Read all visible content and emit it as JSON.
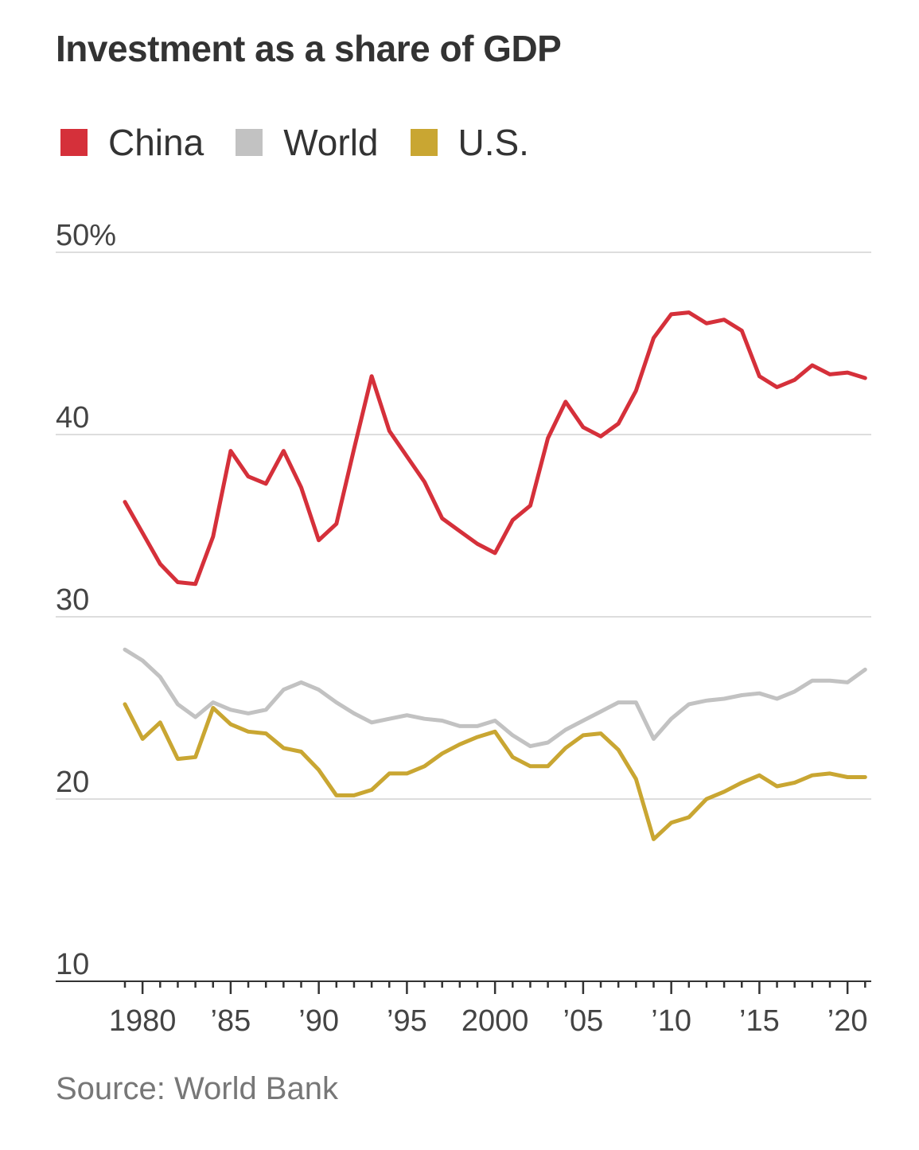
{
  "chart_data": {
    "type": "line",
    "title": "Investment as a share of GDP",
    "source": "Source: World Bank",
    "ylim": [
      10,
      50
    ],
    "yticks": [
      {
        "value": 50,
        "label": "50%"
      },
      {
        "value": 40,
        "label": "40"
      },
      {
        "value": 30,
        "label": "30"
      },
      {
        "value": 20,
        "label": "20"
      },
      {
        "value": 10,
        "label": "10"
      }
    ],
    "xlim": [
      1978,
      2022
    ],
    "xticks": [
      {
        "value": 1980,
        "label": "1980"
      },
      {
        "value": 1985,
        "label": "’85"
      },
      {
        "value": 1990,
        "label": "’90"
      },
      {
        "value": 1995,
        "label": "’95"
      },
      {
        "value": 2000,
        "label": "2000"
      },
      {
        "value": 2005,
        "label": "’05"
      },
      {
        "value": 2010,
        "label": "’10"
      },
      {
        "value": 2015,
        "label": "’15"
      },
      {
        "value": 2020,
        "label": "’20"
      }
    ],
    "grid": true,
    "legend_position": "top-left",
    "x": [
      1979,
      1980,
      1981,
      1982,
      1983,
      1984,
      1985,
      1986,
      1987,
      1988,
      1989,
      1990,
      1991,
      1992,
      1993,
      1994,
      1995,
      1996,
      1997,
      1998,
      1999,
      2000,
      2001,
      2002,
      2003,
      2004,
      2005,
      2006,
      2007,
      2008,
      2009,
      2010,
      2011,
      2012,
      2013,
      2014,
      2015,
      2016,
      2017,
      2018,
      2019,
      2020,
      2021
    ],
    "series": [
      {
        "name": "China",
        "color": "#d5303a",
        "values": [
          36.3,
          34.6,
          32.9,
          31.9,
          31.8,
          34.4,
          39.1,
          37.7,
          37.3,
          39.1,
          37.1,
          34.2,
          35.1,
          39.2,
          43.2,
          40.2,
          38.8,
          37.4,
          35.4,
          34.7,
          34.0,
          33.5,
          35.3,
          36.1,
          39.8,
          41.8,
          40.4,
          39.9,
          40.6,
          42.4,
          45.3,
          46.6,
          46.7,
          46.1,
          46.3,
          45.7,
          43.2,
          42.6,
          43.0,
          43.8,
          43.3,
          43.4,
          43.1
        ]
      },
      {
        "name": "World",
        "color": "#c2c2c2",
        "values": [
          28.2,
          27.6,
          26.7,
          25.2,
          24.5,
          25.3,
          24.9,
          24.7,
          24.9,
          26.0,
          26.4,
          26.0,
          25.3,
          24.7,
          24.2,
          24.4,
          24.6,
          24.4,
          24.3,
          24.0,
          24.0,
          24.3,
          23.5,
          22.9,
          23.1,
          23.8,
          24.3,
          24.8,
          25.3,
          25.3,
          23.3,
          24.4,
          25.2,
          25.4,
          25.5,
          25.7,
          25.8,
          25.5,
          25.9,
          26.5,
          26.5,
          26.4,
          27.1
        ]
      },
      {
        "name": "U.S.",
        "color": "#c9a632",
        "values": [
          25.2,
          23.3,
          24.2,
          22.2,
          22.3,
          25.0,
          24.1,
          23.7,
          23.6,
          22.8,
          22.6,
          21.6,
          20.2,
          20.2,
          20.5,
          21.4,
          21.4,
          21.8,
          22.5,
          23.0,
          23.4,
          23.7,
          22.3,
          21.8,
          21.8,
          22.8,
          23.5,
          23.6,
          22.7,
          21.1,
          17.8,
          18.7,
          19.0,
          20.0,
          20.4,
          20.9,
          21.3,
          20.7,
          20.9,
          21.3,
          21.4,
          21.2,
          21.2
        ]
      }
    ]
  }
}
